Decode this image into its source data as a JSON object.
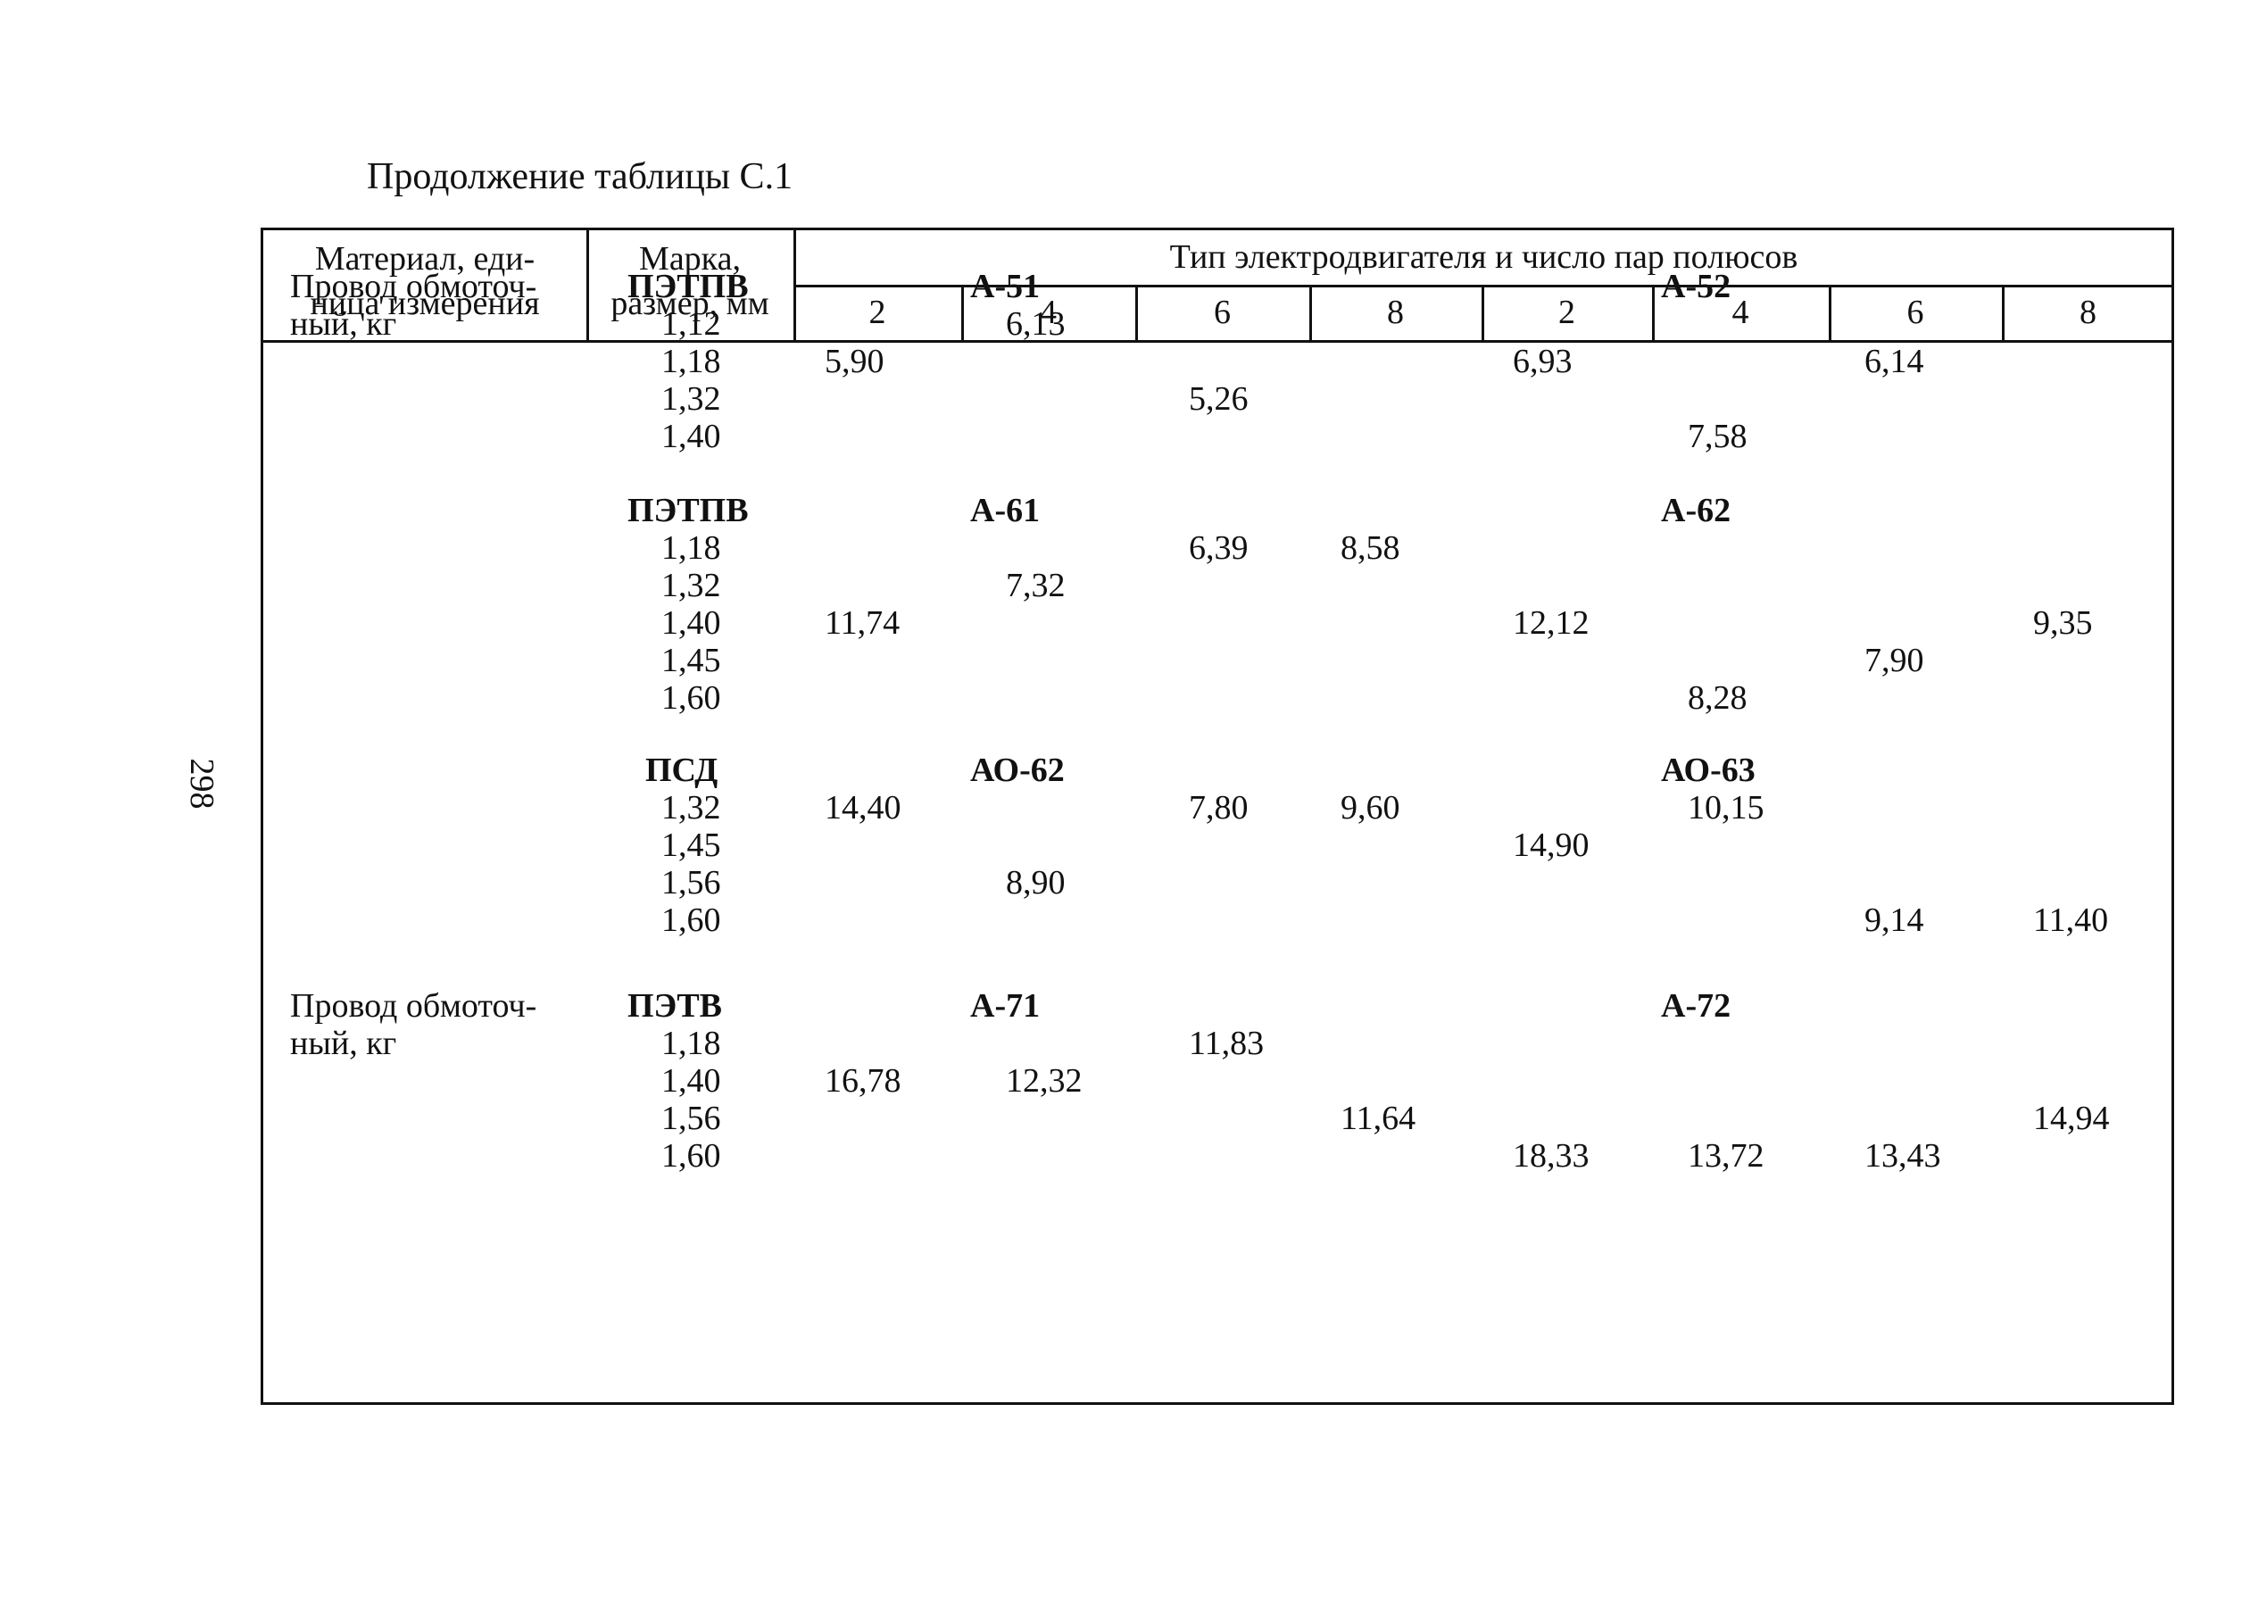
{
  "caption": "Продолжение таблицы С.1",
  "page_number": "298",
  "header": {
    "material_line1": "Материал, еди-",
    "material_line2": "ница измерения",
    "mark_line1": "Марка,",
    "mark_line2": "размер, мм",
    "engine_type": "Тип электродвигателя и число пар полюсов",
    "poles": [
      "2",
      "4",
      "6",
      "8",
      "2",
      "4",
      "6",
      "8"
    ]
  },
  "groups": [
    {
      "material": [
        "Провод обмоточ-",
        "ный, кг"
      ],
      "mark": "ПЭТПВ",
      "engine_left": "А-51",
      "engine_right": "А-52",
      "rows": [
        {
          "size": "1,12",
          "values": [
            "",
            "6,13",
            "",
            "",
            "",
            "",
            "",
            ""
          ]
        },
        {
          "size": "1,18",
          "values": [
            "5,90",
            "",
            "",
            "",
            "6,93",
            "",
            "6,14",
            ""
          ]
        },
        {
          "size": "1,32",
          "values": [
            "",
            "",
            "5,26",
            "",
            "",
            "",
            "",
            ""
          ]
        },
        {
          "size": "1,40",
          "values": [
            "",
            "",
            "",
            "",
            "",
            "7,58",
            "",
            ""
          ]
        }
      ]
    },
    {
      "material": [],
      "mark": "ПЭТПВ",
      "engine_left": "А-61",
      "engine_right": "А-62",
      "rows": [
        {
          "size": "1,18",
          "values": [
            "",
            "",
            "6,39",
            "8,58",
            "",
            "",
            "",
            ""
          ]
        },
        {
          "size": "1,32",
          "values": [
            "",
            "7,32",
            "",
            "",
            "",
            "",
            "",
            ""
          ]
        },
        {
          "size": "1,40",
          "values": [
            "11,74",
            "",
            "",
            "",
            "12,12",
            "",
            "",
            "9,35"
          ]
        },
        {
          "size": "1,45",
          "values": [
            "",
            "",
            "",
            "",
            "",
            "",
            "7,90",
            ""
          ]
        },
        {
          "size": "1,60",
          "values": [
            "",
            "",
            "",
            "",
            "",
            "8,28",
            "",
            ""
          ]
        }
      ]
    },
    {
      "material": [],
      "mark": "ПСД",
      "engine_left": "АО-62",
      "engine_right": "АО-63",
      "rows": [
        {
          "size": "1,32",
          "values": [
            "14,40",
            "",
            "7,80",
            "9,60",
            "",
            "10,15",
            "",
            ""
          ]
        },
        {
          "size": "1,45",
          "values": [
            "",
            "",
            "",
            "",
            "14,90",
            "",
            "",
            ""
          ]
        },
        {
          "size": "1,56",
          "values": [
            "",
            "8,90",
            "",
            "",
            "",
            "",
            "",
            ""
          ]
        },
        {
          "size": "1,60",
          "values": [
            "",
            "",
            "",
            "",
            "",
            "",
            "9,14",
            "11,40"
          ]
        }
      ]
    },
    {
      "material": [
        "Провод обмоточ-",
        "ный, кг"
      ],
      "mark": "ПЭТВ",
      "engine_left": "А-71",
      "engine_right": "А-72",
      "rows": [
        {
          "size": "1,18",
          "values": [
            "",
            "",
            "11,83",
            "",
            "",
            "",
            "",
            ""
          ]
        },
        {
          "size": "1,40",
          "values": [
            "16,78",
            "12,32",
            "",
            "",
            "",
            "",
            "",
            ""
          ]
        },
        {
          "size": "1,56",
          "values": [
            "",
            "",
            "",
            "11,64",
            "",
            "",
            "",
            "14,94"
          ]
        },
        {
          "size": "1,60",
          "values": [
            "",
            "",
            "",
            "",
            "18,33",
            "13,72",
            "13,43",
            ""
          ]
        }
      ]
    }
  ]
}
